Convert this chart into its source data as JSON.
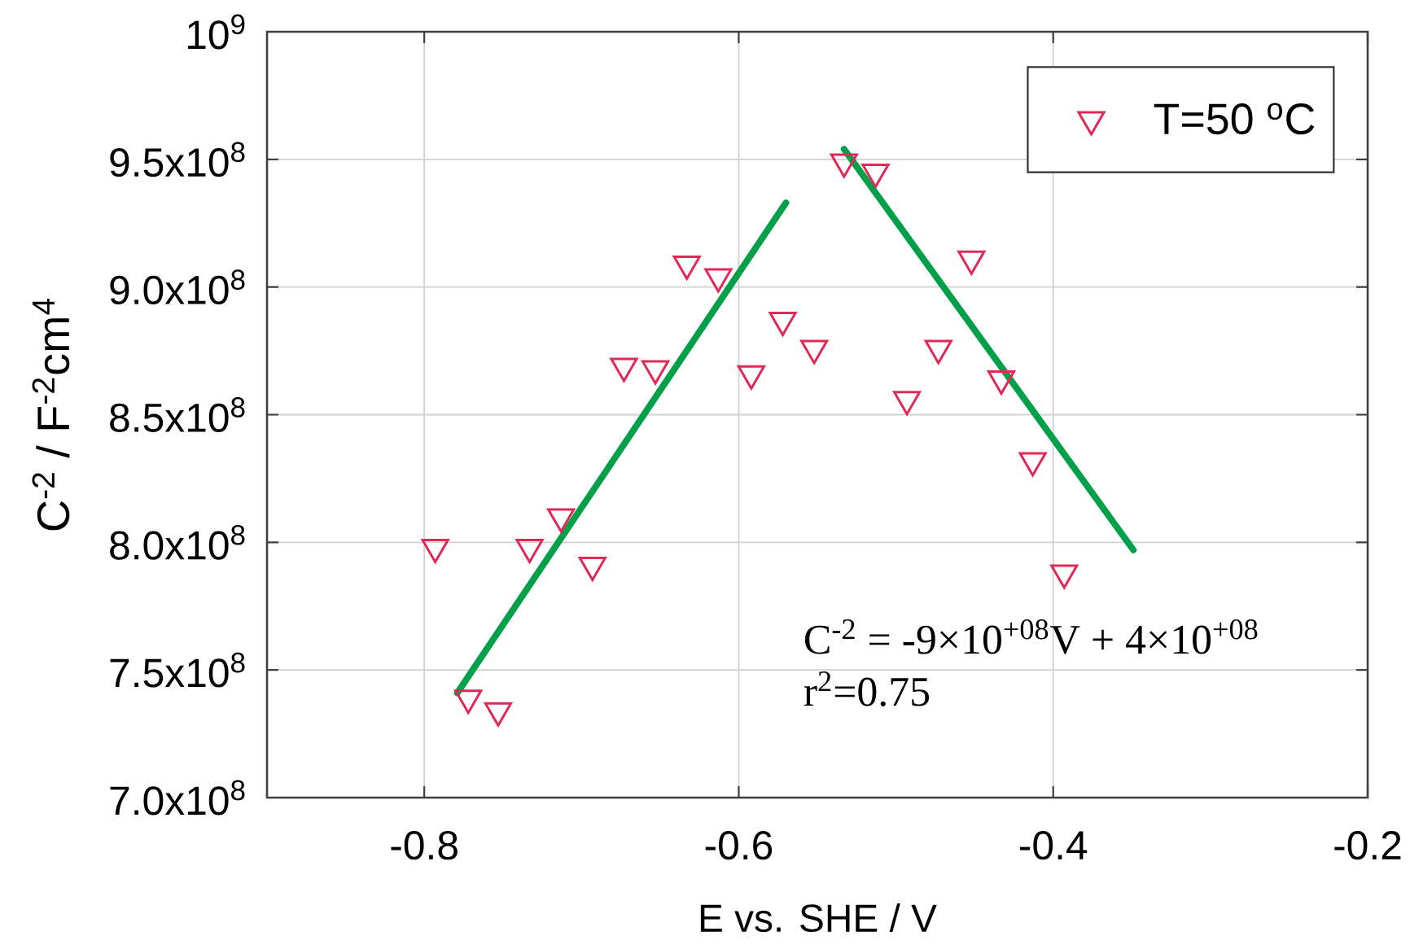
{
  "chart_data": {
    "type": "scatter",
    "xlabel": "E vs. SHE / V",
    "ylabel": "C$^{-2}$ / F$^{-2}$cm$^{4}$",
    "xlim": [
      -0.9,
      -0.2
    ],
    "xticks": [
      -0.8,
      -0.6,
      -0.4,
      -0.2
    ],
    "ylim": [
      700000000,
      1000000000
    ],
    "yticks": [
      {
        "value": 700000000,
        "label": "7.0x10$^{8}$"
      },
      {
        "value": 750000000,
        "label": "7.5x10$^{8}$"
      },
      {
        "value": 800000000,
        "label": "8.0x10$^{8}$"
      },
      {
        "value": 850000000,
        "label": "8.5x10$^{8}$"
      },
      {
        "value": 900000000,
        "label": "9.0x10$^{8}$"
      },
      {
        "value": 950000000,
        "label": "9.5x10$^{8}$"
      },
      {
        "value": 1000000000,
        "label": "10$^{9}$"
      }
    ],
    "grid": true,
    "legend": "top right",
    "series": [
      {
        "name": "T=50 $^{o}$C",
        "color": "#e02a55",
        "marker": "triangle",
        "x": [
          -0.793,
          -0.772,
          -0.753,
          -0.733,
          -0.713,
          -0.693,
          -0.673,
          -0.653,
          -0.633,
          -0.613,
          -0.592,
          -0.572,
          -0.552,
          -0.533,
          -0.513,
          -0.493,
          -0.473,
          -0.452,
          -0.433,
          -0.413,
          -0.393
        ],
        "values": [
          798000000,
          739000000,
          734000000,
          798000000,
          810000000,
          791000000,
          869000000,
          868000000,
          909000000,
          904000000,
          866000000,
          887000000,
          876000000,
          949000000,
          945000000,
          856000000,
          876000000,
          911000000,
          864000000,
          832000000,
          788000000
        ]
      },
      {
        "type": "line",
        "color": "#00a04a",
        "x": [
          -0.779,
          -0.57
        ],
        "values": [
          741000000,
          933000000
        ]
      },
      {
        "type": "line",
        "color": "#00a04a",
        "x": [
          -0.533,
          -0.349
        ],
        "values": [
          954000000,
          797000000
        ]
      }
    ],
    "annotations": [
      "C$^{-2}$ = -9×10$^{+08}$V + 4×10$^{+08}$",
      "r$^{2}$=0.75"
    ]
  }
}
